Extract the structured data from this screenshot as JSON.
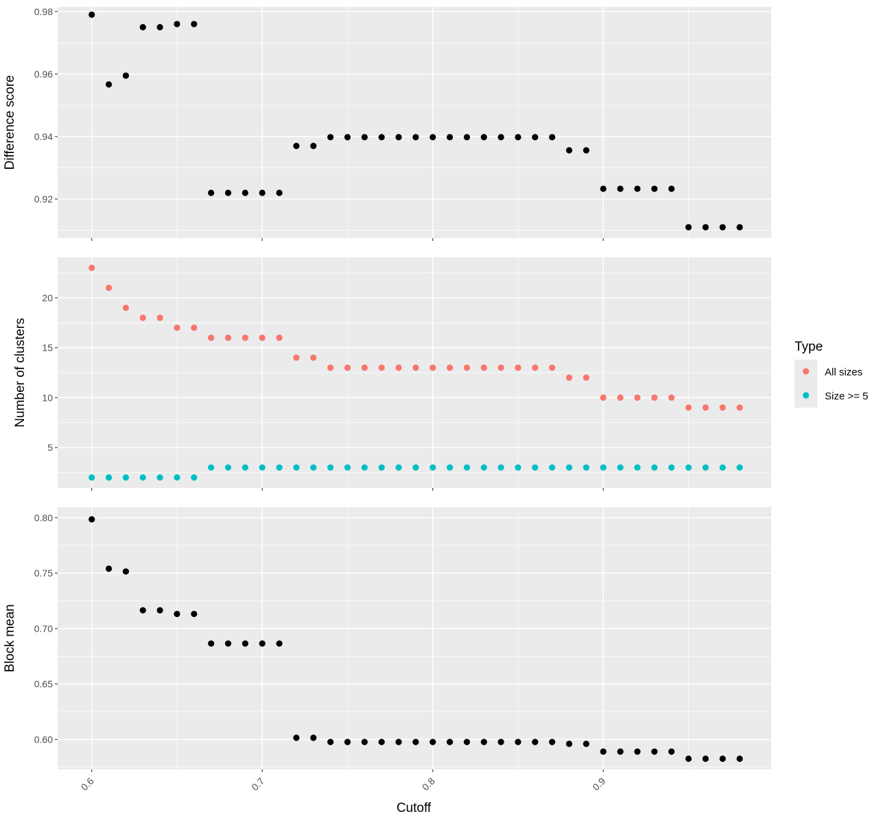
{
  "chart_data": {
    "type": "scatter",
    "facets": "stacked-vertical",
    "shared_x": {
      "label": "Cutoff",
      "range": [
        0.58,
        0.9985
      ],
      "ticks": [
        0.6,
        0.7,
        0.8,
        0.9
      ],
      "tick_labels": [
        "0.6",
        "0.7",
        "0.8",
        "0.9"
      ],
      "tick_label_rotation": -45
    },
    "x": [
      0.6,
      0.61,
      0.62,
      0.63,
      0.64,
      0.65,
      0.66,
      0.67,
      0.68,
      0.69,
      0.7,
      0.71,
      0.72,
      0.73,
      0.74,
      0.75,
      0.76,
      0.77,
      0.78,
      0.79,
      0.8,
      0.81,
      0.82,
      0.83,
      0.84,
      0.85,
      0.86,
      0.87,
      0.88,
      0.89,
      0.9,
      0.91,
      0.92,
      0.93,
      0.94,
      0.95,
      0.96,
      0.97,
      0.98
    ],
    "grid": true,
    "background": "#ebebeb",
    "gridline_color": "#ffffff",
    "legend": {
      "title": "Type",
      "position": "right",
      "entries": [
        {
          "label": "All sizes",
          "color": "#f8766d"
        },
        {
          "label": "Size >= 5",
          "color": "#00bfc4"
        }
      ]
    },
    "panels": [
      {
        "ylabel": "Difference score",
        "ylim": [
          0.9075,
          0.9815
        ],
        "yticks": [
          0.92,
          0.94,
          0.96,
          0.98
        ],
        "ytick_labels": [
          "0.92",
          "0.94",
          "0.96",
          "0.98"
        ],
        "series": [
          {
            "color": "#000000",
            "values": [
              0.979,
              0.9567,
              0.9595,
              0.975,
              0.975,
              0.976,
              0.976,
              0.922,
              0.922,
              0.922,
              0.922,
              0.922,
              0.937,
              0.937,
              0.9398,
              0.9398,
              0.9398,
              0.9398,
              0.9398,
              0.9398,
              0.9398,
              0.9398,
              0.9398,
              0.9398,
              0.9398,
              0.9398,
              0.9398,
              0.9398,
              0.9356,
              0.9356,
              0.9233,
              0.9233,
              0.9233,
              0.9233,
              0.9233,
              0.911,
              0.911,
              0.911,
              0.911
            ]
          }
        ]
      },
      {
        "ylabel": "Number of clusters",
        "ylim": [
          0.95,
          24.05
        ],
        "yticks": [
          5,
          10,
          15,
          20
        ],
        "ytick_labels": [
          "5",
          "10",
          "15",
          "20"
        ],
        "series": [
          {
            "name": "All sizes",
            "color": "#f8766d",
            "values": [
              23,
              21,
              19,
              18,
              18,
              17,
              17,
              16,
              16,
              16,
              16,
              16,
              14,
              14,
              13,
              13,
              13,
              13,
              13,
              13,
              13,
              13,
              13,
              13,
              13,
              13,
              13,
              13,
              12,
              12,
              10,
              10,
              10,
              10,
              10,
              9,
              9,
              9,
              9
            ]
          },
          {
            "name": "Size >= 5",
            "color": "#00bfc4",
            "values": [
              2,
              2,
              2,
              2,
              2,
              2,
              2,
              3,
              3,
              3,
              3,
              3,
              3,
              3,
              3,
              3,
              3,
              3,
              3,
              3,
              3,
              3,
              3,
              3,
              3,
              3,
              3,
              3,
              3,
              3,
              3,
              3,
              3,
              3,
              3,
              3,
              3,
              3,
              3
            ]
          }
        ]
      },
      {
        "ylabel": "Block mean",
        "ylim": [
          0.573,
          0.8095
        ],
        "yticks": [
          0.6,
          0.65,
          0.7,
          0.75,
          0.8
        ],
        "ytick_labels": [
          "0.60",
          "0.65",
          "0.70",
          "0.75",
          "0.80"
        ],
        "series": [
          {
            "color": "#000000",
            "values": [
              0.7985,
              0.754,
              0.7515,
              0.7165,
              0.7165,
              0.7132,
              0.7132,
              0.6865,
              0.6865,
              0.6865,
              0.6865,
              0.6865,
              0.6015,
              0.6015,
              0.5977,
              0.5977,
              0.5977,
              0.5977,
              0.5977,
              0.5977,
              0.5977,
              0.5977,
              0.5977,
              0.5977,
              0.5977,
              0.5977,
              0.5977,
              0.5977,
              0.596,
              0.596,
              0.589,
              0.589,
              0.589,
              0.589,
              0.589,
              0.5826,
              0.5826,
              0.5826,
              0.5826
            ]
          }
        ]
      }
    ]
  }
}
